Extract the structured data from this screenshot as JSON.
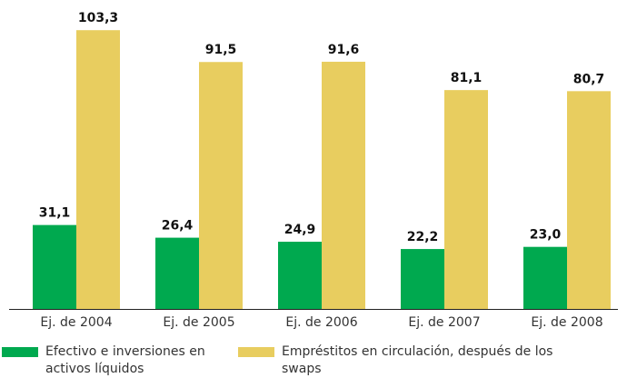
{
  "chart_data": {
    "type": "bar",
    "categories": [
      "Ej. de 2004",
      "Ej. de 2005",
      "Ej. de 2006",
      "Ej. de 2007",
      "Ej. de 2008"
    ],
    "series": [
      {
        "name": "Efectivo e inversiones en activos líquidos",
        "color": "#00a94f",
        "values": [
          31.1,
          26.4,
          24.9,
          22.2,
          23.0
        ],
        "value_labels": [
          "31,1",
          "26,4",
          "24,9",
          "22,2",
          "23,0"
        ]
      },
      {
        "name": "Empréstitos en circulación, después de los swaps",
        "color": "#e8cd5f",
        "values": [
          103.3,
          91.5,
          91.6,
          81.1,
          80.7
        ],
        "value_labels": [
          "103,3",
          "91,5",
          "91,6",
          "81,1",
          "80,7"
        ]
      }
    ]
  }
}
